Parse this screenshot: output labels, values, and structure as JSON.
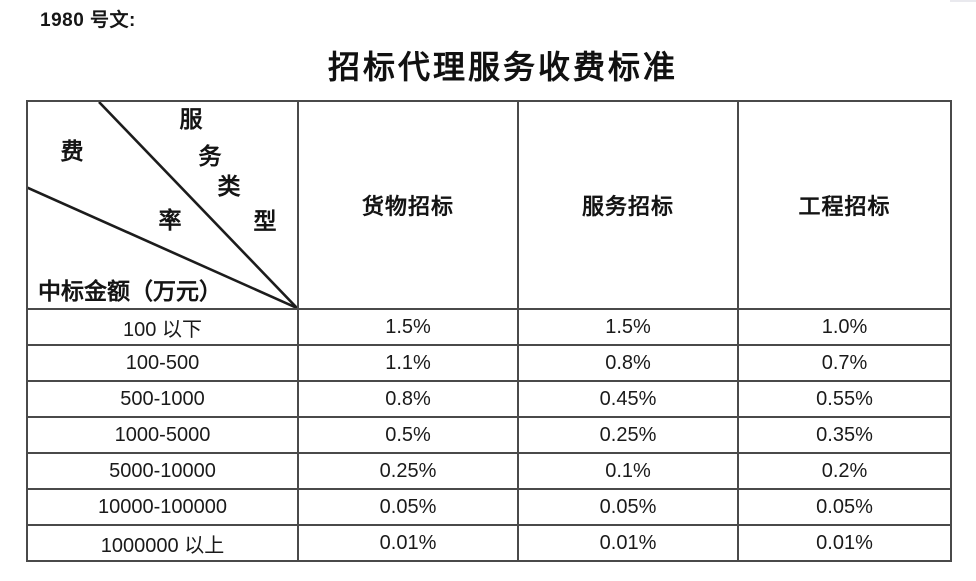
{
  "doc_label": "1980 号文:",
  "title": "招标代理服务收费标准",
  "table": {
    "corner": {
      "col_axis_chars": [
        "服",
        "务",
        "类",
        "型"
      ],
      "row_axis_chars": [
        "费",
        "率"
      ],
      "bottom_label": "中标金额（万元）"
    },
    "columns": [
      "货物招标",
      "服务招标",
      "工程招标"
    ],
    "rows": [
      {
        "amount": "100 以下",
        "goods": "1.5%",
        "services": "1.5%",
        "works": "1.0%"
      },
      {
        "amount": "100-500",
        "goods": "1.1%",
        "services": "0.8%",
        "works": "0.7%"
      },
      {
        "amount": "500-1000",
        "goods": "0.8%",
        "services": "0.45%",
        "works": "0.55%"
      },
      {
        "amount": "1000-5000",
        "goods": "0.5%",
        "services": "0.25%",
        "works": "0.35%"
      },
      {
        "amount": "5000-10000",
        "goods": "0.25%",
        "services": "0.1%",
        "works": "0.2%"
      },
      {
        "amount": "10000-100000",
        "goods": "0.05%",
        "services": "0.05%",
        "works": "0.05%"
      },
      {
        "amount": "1000000 以上",
        "goods": "0.01%",
        "services": "0.01%",
        "works": "0.01%"
      }
    ]
  },
  "colors": {
    "text": "#1a1a1a",
    "border": "#4a4a4a",
    "background": "#ffffff"
  }
}
